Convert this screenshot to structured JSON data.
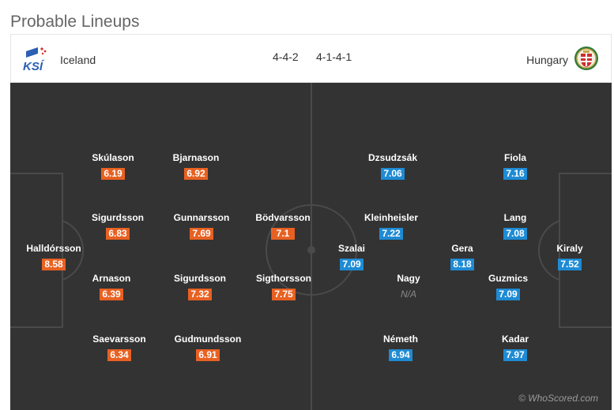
{
  "page": {
    "title": "Probable Lineups"
  },
  "header": {
    "home": {
      "name": "Iceland",
      "formation": "4-4-2",
      "crest": "ksi-crest-icon",
      "crest_text": "KSÍ"
    },
    "away": {
      "name": "Hungary",
      "formation": "4-1-4-1",
      "crest": "hungary-crest-icon"
    }
  },
  "colors": {
    "home_rating": "#e86122",
    "away_rating": "#1e8bd4",
    "pitch": "#333333"
  },
  "home_players": [
    {
      "name": "Skúlason",
      "rating": "6.19"
    },
    {
      "name": "Bjarnason",
      "rating": "6.92"
    },
    {
      "name": "Sigurdsson",
      "rating": "6.83"
    },
    {
      "name": "Gunnarsson",
      "rating": "7.69"
    },
    {
      "name": "Bödvarsson",
      "rating": "7.1"
    },
    {
      "name": "Halldórsson",
      "rating": "8.58"
    },
    {
      "name": "Arnason",
      "rating": "6.39"
    },
    {
      "name": "Sigurdsson",
      "rating": "7.32"
    },
    {
      "name": "Sigthorsson",
      "rating": "7.75"
    },
    {
      "name": "Saevarsson",
      "rating": "6.34"
    },
    {
      "name": "Gudmundsson",
      "rating": "6.91"
    }
  ],
  "away_players": [
    {
      "name": "Dzsudzsák",
      "rating": "7.06"
    },
    {
      "name": "Fiola",
      "rating": "7.16"
    },
    {
      "name": "Kleinheisler",
      "rating": "7.22"
    },
    {
      "name": "Lang",
      "rating": "7.08"
    },
    {
      "name": "Szalai",
      "rating": "7.09"
    },
    {
      "name": "Gera",
      "rating": "8.18"
    },
    {
      "name": "Kiraly",
      "rating": "7.52"
    },
    {
      "name": "Nagy",
      "rating": "N/A"
    },
    {
      "name": "Guzmics",
      "rating": "7.09"
    },
    {
      "name": "Németh",
      "rating": "6.94"
    },
    {
      "name": "Kadar",
      "rating": "7.97"
    }
  ],
  "watermark": "© WhoScored.com"
}
